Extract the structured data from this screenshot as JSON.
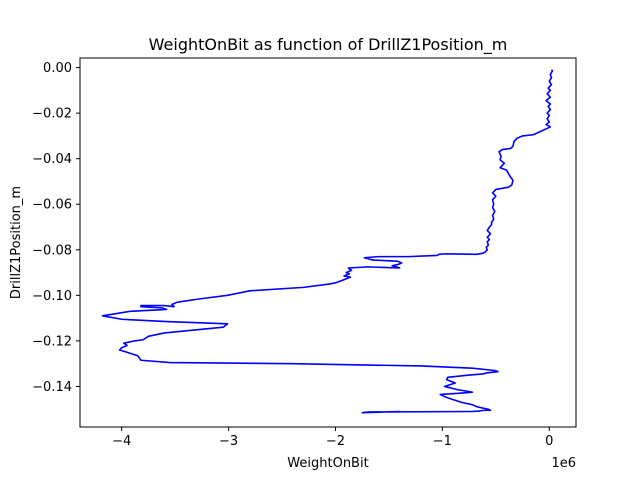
{
  "chart_data": {
    "type": "line",
    "title": "WeightOnBit as function of DrillZ1Position_m",
    "xlabel": "WeightOnBit",
    "ylabel": "DrillZ1Position_m",
    "x_offset_label": "1e6",
    "x_scale": 1000000,
    "xlim": [
      -4.39,
      0.25
    ],
    "ylim": [
      -0.1578,
      0.0042
    ],
    "x_ticks": [
      -4,
      -3,
      -2,
      -1,
      0
    ],
    "x_tick_labels": [
      "−4",
      "−3",
      "−2",
      "−1",
      "0"
    ],
    "y_ticks": [
      0.0,
      -0.02,
      -0.04,
      -0.06,
      -0.08,
      -0.1,
      -0.12,
      -0.14
    ],
    "y_tick_labels": [
      "0.00",
      "−0.02",
      "−0.04",
      "−0.06",
      "−0.08",
      "−0.10",
      "−0.12",
      "−0.14"
    ],
    "grid": false,
    "line_color": "#0000ff",
    "series": [
      {
        "x": [
          0.02,
          0.03,
          0.01,
          0.02,
          0.0,
          0.02,
          -0.01,
          0.01,
          -0.02,
          0.01,
          -0.03,
          0.01,
          -0.01,
          0.01,
          -0.02,
          0.0,
          -0.02,
          0.0,
          -0.03,
          0.01,
          -0.01,
          -0.08,
          -0.15,
          -0.25,
          -0.3,
          -0.33,
          -0.34,
          -0.36,
          -0.44,
          -0.47,
          -0.45,
          -0.46,
          -0.42,
          -0.46,
          -0.4,
          -0.37,
          -0.34,
          -0.35,
          -0.38,
          -0.5,
          -0.53,
          -0.5,
          -0.53,
          -0.52,
          -0.53,
          -0.51,
          -0.53,
          -0.52,
          -0.54,
          -0.54,
          -0.56,
          -0.58,
          -0.55,
          -0.58,
          -0.56,
          -0.58,
          -0.57,
          -0.59,
          -0.58,
          -0.6,
          -0.62,
          -0.68,
          -0.9,
          -0.98,
          -1.03,
          -1.05,
          -1.32,
          -1.6,
          -1.73,
          -1.65,
          -1.42,
          -1.38,
          -1.42,
          -1.47,
          -1.43,
          -1.4,
          -1.7,
          -1.88,
          -1.85,
          -1.9,
          -1.87,
          -1.92,
          -1.86,
          -1.94,
          -2.0,
          -2.05,
          -2.3,
          -2.8,
          -3.01,
          -3.26,
          -3.48,
          -3.53,
          -3.51,
          -3.6,
          -3.82,
          -3.82,
          -3.62,
          -3.58,
          -3.92,
          -4.18,
          -4.0,
          -3.58,
          -3.01,
          -3.05,
          -3.6,
          -3.75,
          -3.8,
          -3.88,
          -3.98,
          -3.95,
          -4.0,
          -4.02,
          -3.95,
          -3.85,
          -3.82,
          -3.55,
          -2.4,
          -1.2,
          -0.72,
          -0.51,
          -0.48,
          -0.58,
          -0.62,
          -0.75,
          -0.85,
          -0.95,
          -0.96,
          -0.88,
          -0.98,
          -0.85,
          -0.78,
          -0.72,
          -0.85,
          -1.02,
          -1.0,
          -0.95,
          -0.82,
          -0.72,
          -0.67,
          -0.57,
          -0.55,
          -0.62,
          -0.66,
          -0.72,
          -0.74,
          -1.68,
          -1.75,
          -1.4
        ],
        "y": [
          -0.001,
          -0.0015,
          -0.003,
          -0.0045,
          -0.006,
          -0.0075,
          -0.009,
          -0.01,
          -0.0115,
          -0.013,
          -0.0145,
          -0.016,
          -0.017,
          -0.0185,
          -0.02,
          -0.021,
          -0.0225,
          -0.024,
          -0.025,
          -0.026,
          -0.0265,
          -0.028,
          -0.0295,
          -0.03,
          -0.031,
          -0.0325,
          -0.0345,
          -0.0355,
          -0.036,
          -0.037,
          -0.039,
          -0.0405,
          -0.042,
          -0.044,
          -0.045,
          -0.0475,
          -0.0495,
          -0.0515,
          -0.0525,
          -0.0535,
          -0.055,
          -0.0565,
          -0.058,
          -0.06,
          -0.0615,
          -0.063,
          -0.065,
          -0.0665,
          -0.068,
          -0.069,
          -0.07,
          -0.0715,
          -0.073,
          -0.0745,
          -0.0755,
          -0.0765,
          -0.078,
          -0.079,
          -0.08,
          -0.081,
          -0.0815,
          -0.082,
          -0.0818,
          -0.0818,
          -0.082,
          -0.0825,
          -0.083,
          -0.083,
          -0.0835,
          -0.0845,
          -0.085,
          -0.0858,
          -0.0865,
          -0.087,
          -0.0875,
          -0.088,
          -0.0875,
          -0.088,
          -0.089,
          -0.09,
          -0.0905,
          -0.0915,
          -0.092,
          -0.0935,
          -0.0945,
          -0.095,
          -0.0965,
          -0.098,
          -0.1,
          -0.1015,
          -0.103,
          -0.104,
          -0.105,
          -0.1045,
          -0.1045,
          -0.105,
          -0.1055,
          -0.1062,
          -0.107,
          -0.109,
          -0.1105,
          -0.1115,
          -0.1125,
          -0.114,
          -0.1165,
          -0.118,
          -0.1195,
          -0.12,
          -0.121,
          -0.122,
          -0.123,
          -0.124,
          -0.125,
          -0.1265,
          -0.1285,
          -0.1295,
          -0.13,
          -0.131,
          -0.132,
          -0.133,
          -0.1335,
          -0.134,
          -0.1345,
          -0.135,
          -0.1355,
          -0.136,
          -0.137,
          -0.1385,
          -0.14,
          -0.1415,
          -0.142,
          -0.1425,
          -0.143,
          -0.1435,
          -0.144,
          -0.145,
          -0.147,
          -0.148,
          -0.149,
          -0.15,
          -0.1505,
          -0.1505,
          -0.1508,
          -0.151,
          -0.151,
          -0.1512,
          -0.1515,
          -0.151
        ]
      }
    ]
  }
}
